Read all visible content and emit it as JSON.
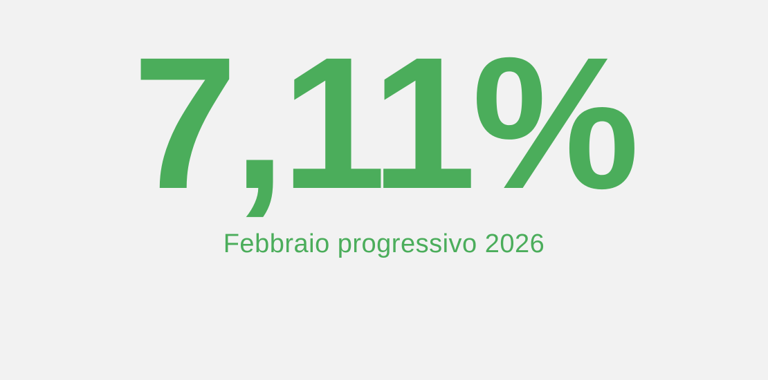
{
  "colors": {
    "background": "#F2F2F2",
    "accent": "#4BAD5B"
  },
  "kpi": {
    "value": "7,11%",
    "label": "Febbraio progressivo 2026"
  },
  "chart_data": {
    "type": "table",
    "title": "Febbraio progressivo 2026",
    "categories": [
      "Febbraio progressivo 2026"
    ],
    "values": [
      7.11
    ],
    "unit": "%",
    "value_display": "7,11%",
    "notes": "Single large KPI statistic, green text centered on light gray background"
  }
}
